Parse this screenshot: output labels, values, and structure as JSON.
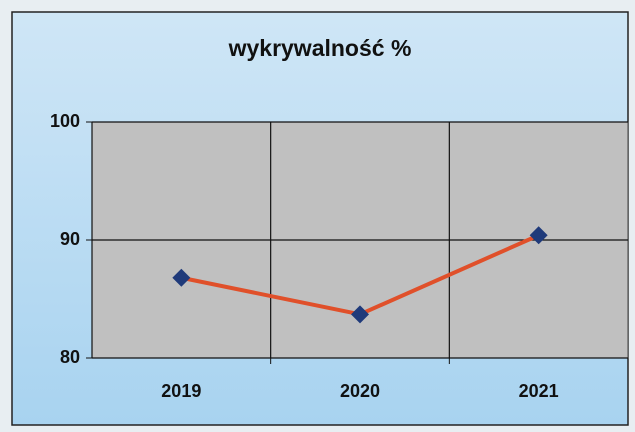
{
  "chart_data": {
    "type": "line",
    "title": "wykrywalność %",
    "categories": [
      "2019",
      "2020",
      "2021"
    ],
    "values": [
      86.8,
      83.7,
      90.4
    ],
    "color": "#e0502a",
    "marker_color": "#1f3a7a",
    "ylim": [
      80,
      100
    ],
    "yticks": [
      80,
      90,
      100
    ],
    "grid": true
  }
}
